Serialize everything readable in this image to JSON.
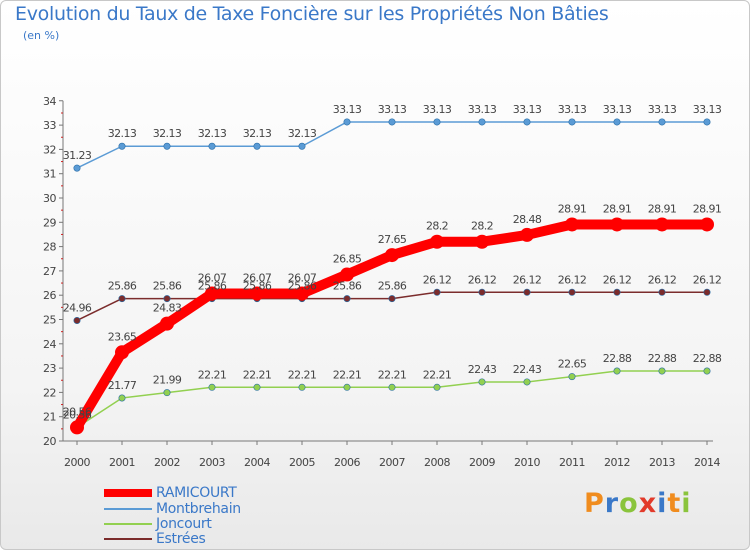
{
  "title": "Evolution du Taux de Taxe Foncière sur les Propriétés Non Bâties",
  "unit_label": "(en %)",
  "logo": {
    "letters": [
      "P",
      "r",
      "o",
      "x",
      "i",
      "t",
      "i"
    ],
    "colors": [
      "#f08c1e",
      "#3a78c8",
      "#8ac43c",
      "#e23a2a",
      "#3a78c8",
      "#f08c1e",
      "#8ac43c"
    ]
  },
  "chart_data": {
    "type": "line",
    "x": [
      "2000",
      "2001",
      "2002",
      "2003",
      "2004",
      "2005",
      "2006",
      "2007",
      "2008",
      "2009",
      "2010",
      "2011",
      "2012",
      "2013",
      "2014"
    ],
    "ylim": [
      20,
      34
    ],
    "yticks": [
      "20",
      "21",
      "22",
      "23",
      "24",
      "25",
      "26",
      "27",
      "28",
      "29",
      "30",
      "31",
      "32",
      "33",
      "34"
    ],
    "grid": false,
    "legend_position": "bottom-left",
    "series": [
      {
        "name": "RAMICOURT",
        "color": "#ff0000",
        "emphasis": true,
        "values": [
          20.56,
          23.65,
          24.83,
          26.07,
          26.07,
          26.07,
          26.85,
          27.65,
          28.2,
          28.2,
          28.48,
          28.91,
          28.91,
          28.91,
          28.91
        ],
        "labels": [
          "20.56",
          "23.65",
          "24.83",
          "26.07",
          "26.07",
          "26.07",
          "26.85",
          "27.65",
          "28.2",
          "28.2",
          "28.48",
          "28.91",
          "28.91",
          "28.91",
          "28.91"
        ]
      },
      {
        "name": "Montbrehain",
        "color": "#5b9bd5",
        "emphasis": false,
        "values": [
          31.23,
          32.13,
          32.13,
          32.13,
          32.13,
          32.13,
          33.13,
          33.13,
          33.13,
          33.13,
          33.13,
          33.13,
          33.13,
          33.13,
          33.13
        ],
        "labels": [
          "31.23",
          "32.13",
          "32.13",
          "32.13",
          "32.13",
          "32.13",
          "33.13",
          "33.13",
          "33.13",
          "33.13",
          "33.13",
          "33.13",
          "33.13",
          "33.13",
          "33.13"
        ]
      },
      {
        "name": "Joncourt",
        "color": "#92d050",
        "emphasis": false,
        "values": [
          20.56,
          21.77,
          21.99,
          22.21,
          22.21,
          22.21,
          22.21,
          22.21,
          22.21,
          22.43,
          22.43,
          22.65,
          22.88,
          22.88,
          22.88
        ],
        "labels": [
          "20.56",
          "21.77",
          "21.99",
          "22.21",
          "22.21",
          "22.21",
          "22.21",
          "22.21",
          "22.21",
          "22.43",
          "22.43",
          "22.65",
          "22.88",
          "22.88",
          "22.88"
        ]
      },
      {
        "name": "Estrées",
        "color": "#7b2c2c",
        "emphasis": false,
        "values": [
          24.96,
          25.86,
          25.86,
          25.86,
          25.86,
          25.86,
          25.86,
          25.86,
          26.12,
          26.12,
          26.12,
          26.12,
          26.12,
          26.12,
          26.12
        ],
        "labels": [
          "24.96",
          "25.86",
          "25.86",
          "25.86",
          "25.86",
          "25.86",
          "25.86",
          "25.86",
          "26.12",
          "26.12",
          "26.12",
          "26.12",
          "26.12",
          "26.12",
          "26.12"
        ]
      }
    ]
  }
}
